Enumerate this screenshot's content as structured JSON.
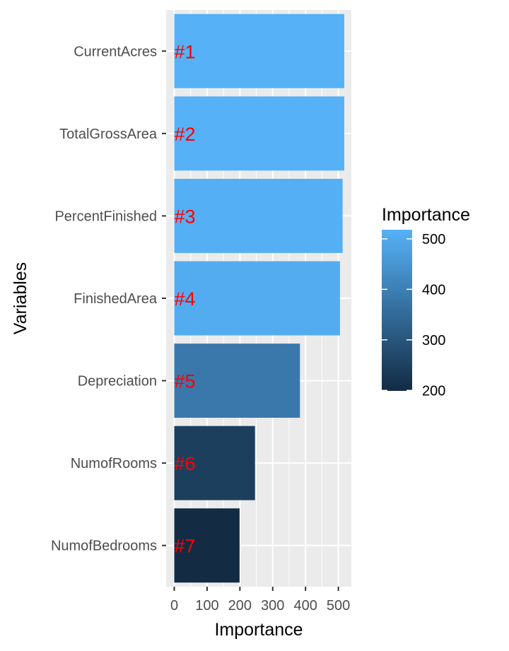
{
  "chart_data": {
    "type": "bar",
    "orientation": "horizontal",
    "title": "",
    "xlabel": "Importance",
    "ylabel": "Variables",
    "xlim": [
      -20,
      540
    ],
    "x_ticks": [
      0,
      100,
      200,
      300,
      400,
      500
    ],
    "grid": true,
    "categories": [
      "CurrentAcres",
      "TotalGrossArea",
      "PercentFinished",
      "FinishedArea",
      "Depreciation",
      "NumofRooms",
      "NumofBedrooms"
    ],
    "values": [
      518,
      518,
      513,
      505,
      383,
      246,
      199
    ],
    "rank_labels": [
      "#1",
      "#2",
      "#3",
      "#4",
      "#5",
      "#6",
      "#7"
    ],
    "fill_by": "value",
    "colors": {
      "low": "#132B43",
      "high": "#56B1F7",
      "rank_label": "#ff0000",
      "panel": "#ebebeb",
      "grid": "#ffffff"
    },
    "legend": {
      "title": "Importance",
      "position": "right",
      "breaks": [
        200,
        300,
        400,
        500
      ],
      "limits": [
        199,
        518
      ]
    }
  }
}
